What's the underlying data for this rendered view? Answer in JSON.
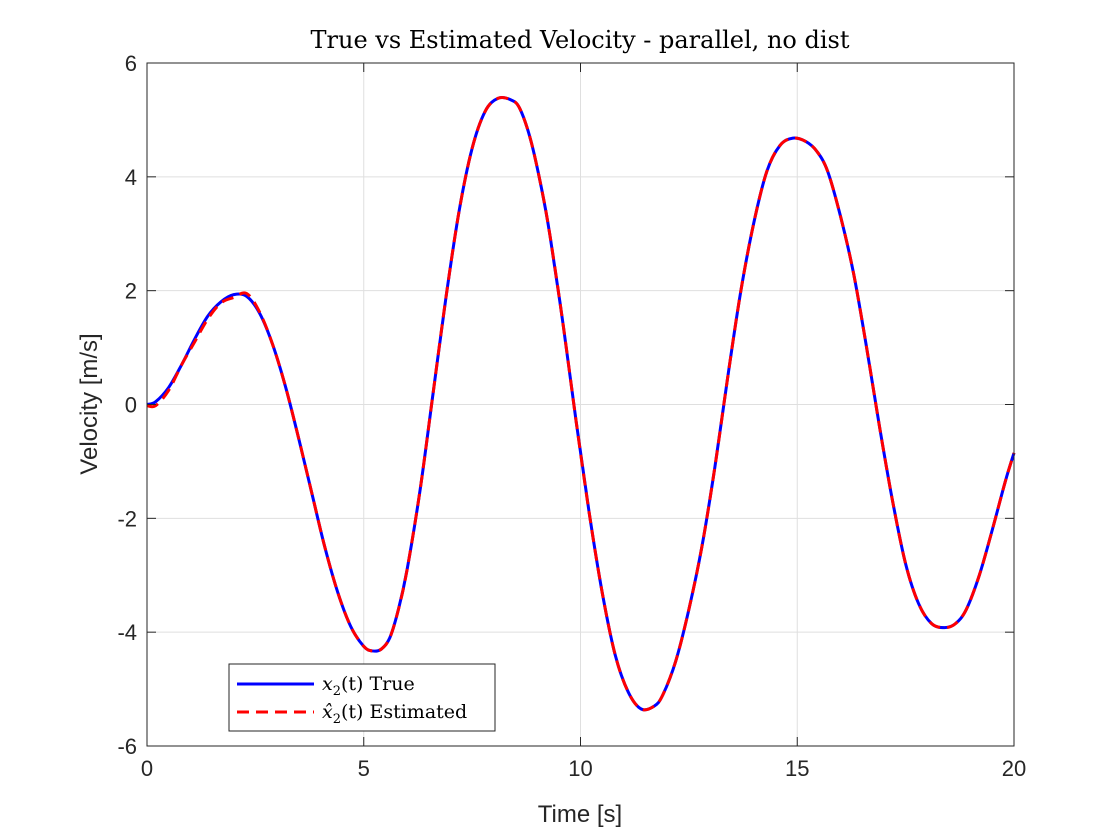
{
  "chart_data": {
    "type": "line",
    "title": "True vs Estimated Velocity - parallel, no dist",
    "xlabel": "Time [s]",
    "ylabel": "Velocity [m/s]",
    "xlim": [
      0,
      20
    ],
    "ylim": [
      -6,
      6
    ],
    "xticks": [
      0,
      5,
      10,
      15,
      20
    ],
    "yticks": [
      -6,
      -4,
      -2,
      0,
      2,
      4,
      6
    ],
    "xtick_labels": [
      "0",
      "5",
      "10",
      "15",
      "20"
    ],
    "ytick_labels": [
      "-6",
      "-4",
      "-2",
      "0",
      "2",
      "4",
      "6"
    ],
    "grid": true,
    "legend_position": "bottom-left",
    "series": [
      {
        "name": "x2(t) True",
        "legend_var": "x",
        "legend_sub": "2",
        "legend_arg": "(t)",
        "legend_word": "True",
        "color": "#0000ff",
        "style": "solid",
        "x": [
          0,
          0.2,
          0.5,
          0.8,
          1.1,
          1.4,
          1.7,
          2.0,
          2.3,
          2.6,
          2.9,
          3.2,
          3.5,
          3.8,
          4.1,
          4.4,
          4.7,
          5.0,
          5.2,
          5.4,
          5.6,
          5.8,
          6.0,
          6.3,
          6.6,
          6.9,
          7.2,
          7.5,
          7.8,
          8.1,
          8.4,
          8.6,
          8.85,
          9.1,
          9.3,
          9.6,
          9.9,
          10.2,
          10.5,
          10.8,
          11.1,
          11.4,
          11.7,
          11.9,
          12.2,
          12.5,
          12.8,
          13.1,
          13.4,
          13.7,
          14.0,
          14.3,
          14.6,
          14.9,
          15.2,
          15.45,
          15.7,
          16.0,
          16.3,
          16.6,
          16.9,
          17.2,
          17.5,
          17.8,
          18.1,
          18.4,
          18.65,
          18.9,
          19.2,
          19.5,
          19.8,
          20.0
        ],
        "y": [
          0.0,
          0.05,
          0.3,
          0.7,
          1.15,
          1.55,
          1.8,
          1.93,
          1.9,
          1.6,
          1.05,
          0.3,
          -0.6,
          -1.55,
          -2.5,
          -3.3,
          -3.9,
          -4.25,
          -4.33,
          -4.3,
          -4.1,
          -3.6,
          -2.9,
          -1.5,
          0.2,
          1.9,
          3.4,
          4.5,
          5.15,
          5.38,
          5.35,
          5.2,
          4.65,
          3.8,
          2.95,
          1.4,
          -0.3,
          -1.9,
          -3.3,
          -4.4,
          -5.05,
          -5.35,
          -5.3,
          -5.1,
          -4.5,
          -3.6,
          -2.5,
          -1.1,
          0.5,
          2.0,
          3.2,
          4.1,
          4.55,
          4.68,
          4.62,
          4.45,
          4.1,
          3.3,
          2.3,
          1.0,
          -0.4,
          -1.7,
          -2.8,
          -3.5,
          -3.85,
          -3.92,
          -3.85,
          -3.6,
          -3.0,
          -2.2,
          -1.35,
          -0.85
        ]
      },
      {
        "name": "x̂2(t) Estimated",
        "legend_var": "x̂",
        "legend_sub": "2",
        "legend_arg": "(t)",
        "legend_word": "Estimated",
        "color": "#ff0000",
        "style": "dashed",
        "x": [
          0,
          0.2,
          0.5,
          0.8,
          1.1,
          1.4,
          1.7,
          2.0,
          2.3,
          2.6,
          2.9,
          3.2,
          3.5,
          3.8,
          4.1,
          4.4,
          4.7,
          5.0,
          5.2,
          5.4,
          5.6,
          5.8,
          6.0,
          6.3,
          6.6,
          6.9,
          7.2,
          7.5,
          7.8,
          8.1,
          8.4,
          8.6,
          8.85,
          9.1,
          9.3,
          9.6,
          9.9,
          10.2,
          10.5,
          10.8,
          11.1,
          11.4,
          11.7,
          11.9,
          12.2,
          12.5,
          12.8,
          13.1,
          13.4,
          13.7,
          14.0,
          14.3,
          14.6,
          14.9,
          15.2,
          15.45,
          15.7,
          16.0,
          16.3,
          16.6,
          16.9,
          17.2,
          17.5,
          17.8,
          18.1,
          18.4,
          18.65,
          18.9,
          19.2,
          19.5,
          19.8,
          20.0
        ],
        "y": [
          -0.02,
          -0.02,
          0.25,
          0.7,
          1.1,
          1.5,
          1.78,
          1.88,
          1.95,
          1.62,
          1.05,
          0.3,
          -0.6,
          -1.55,
          -2.5,
          -3.3,
          -3.9,
          -4.25,
          -4.33,
          -4.3,
          -4.1,
          -3.6,
          -2.9,
          -1.5,
          0.2,
          1.9,
          3.4,
          4.5,
          5.15,
          5.38,
          5.35,
          5.2,
          4.65,
          3.8,
          2.95,
          1.4,
          -0.3,
          -1.9,
          -3.3,
          -4.4,
          -5.05,
          -5.35,
          -5.3,
          -5.1,
          -4.5,
          -3.6,
          -2.5,
          -1.1,
          0.5,
          2.0,
          3.2,
          4.1,
          4.55,
          4.68,
          4.62,
          4.45,
          4.1,
          3.3,
          2.3,
          1.0,
          -0.4,
          -1.7,
          -2.8,
          -3.5,
          -3.85,
          -3.92,
          -3.85,
          -3.6,
          -3.0,
          -2.2,
          -1.35,
          -0.85
        ]
      }
    ]
  }
}
